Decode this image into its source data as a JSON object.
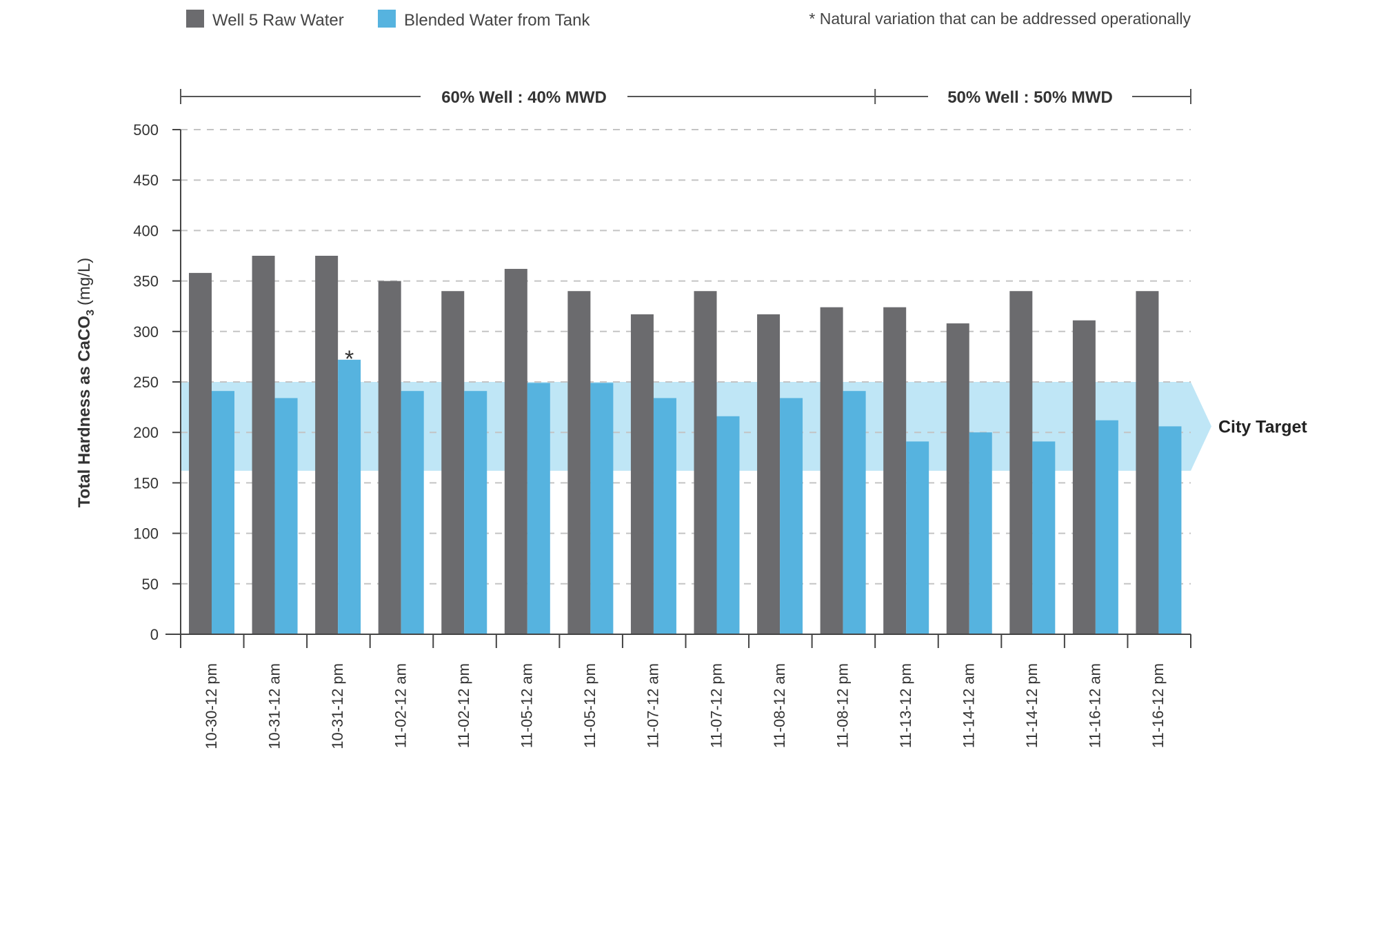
{
  "chart_data": {
    "type": "bar",
    "ylabel": "Total Hardness as CaCO",
    "ylabel_sub": "3",
    "ylabel_unit": "(mg/L)",
    "ylim": [
      0,
      500
    ],
    "yticks": [
      0,
      50,
      100,
      150,
      200,
      250,
      300,
      350,
      400,
      450,
      500
    ],
    "grid": true,
    "legend_position": "top-left",
    "categories": [
      "10-30-12 pm",
      "10-31-12 am",
      "10-31-12 pm",
      "11-02-12 am",
      "11-02-12 pm",
      "11-05-12 am",
      "11-05-12 pm",
      "11-07-12 am",
      "11-07-12 pm",
      "11-08-12 am",
      "11-08-12 pm",
      "11-13-12 pm",
      "11-14-12 am",
      "11-14-12 pm",
      "11-16-12 am",
      "11-16-12 pm"
    ],
    "series": [
      {
        "name": "Well 5 Raw Water",
        "color": "#6b6b6e",
        "values": [
          358,
          375,
          375,
          350,
          340,
          362,
          340,
          317,
          340,
          317,
          324,
          324,
          308,
          340,
          311,
          340
        ]
      },
      {
        "name": "Blended Water from Tank",
        "color": "#56b3df",
        "values": [
          241,
          234,
          272,
          241,
          241,
          249,
          249,
          234,
          216,
          234,
          241,
          191,
          200,
          191,
          212,
          206
        ]
      }
    ],
    "target_band": {
      "label": "City Target",
      "low": 162,
      "high": 250,
      "color": "#bfe6f6"
    },
    "periods": [
      {
        "label": "60% Well : 40% MWD",
        "start_index": 0,
        "end_index": 10
      },
      {
        "label": "50% Well : 50% MWD",
        "start_index": 11,
        "end_index": 15
      }
    ],
    "annotations": [
      {
        "text": "*",
        "series": 1,
        "category_index": 2
      }
    ],
    "footnote": "* Natural variation that can be addressed operationally"
  }
}
